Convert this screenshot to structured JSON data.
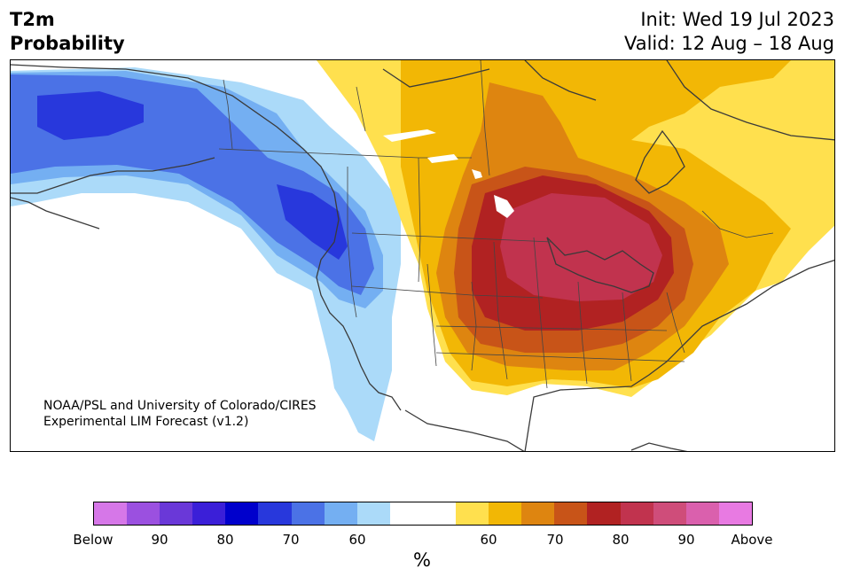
{
  "header": {
    "title_line1": "T2m",
    "title_line2": "Probability",
    "init": "Init: Wed 19 Jul 2023",
    "valid": "Valid: 12 Aug – 18 Aug"
  },
  "map": {
    "credit_line1": "NOAA/PSL and University of Colorado/CIRES",
    "credit_line2": "Experimental LIM Forecast (v1.2)"
  },
  "colorbar": {
    "colors": [
      "#d677e8",
      "#9b50e0",
      "#6a38d8",
      "#3b1fd8",
      "#0000cc",
      "#2838dc",
      "#4b72e6",
      "#74aff2",
      "#abdaf9",
      "#ffffff",
      "#ffffff",
      "#ffe04e",
      "#f2b705",
      "#de8510",
      "#c85418",
      "#b12222",
      "#c1334e",
      "#cf4d7a",
      "#da60ad",
      "#e87ae2"
    ],
    "tick_labels": [
      "Below",
      "90",
      "80",
      "70",
      "60",
      "60",
      "70",
      "80",
      "90",
      "Above"
    ],
    "unit": "%"
  }
}
